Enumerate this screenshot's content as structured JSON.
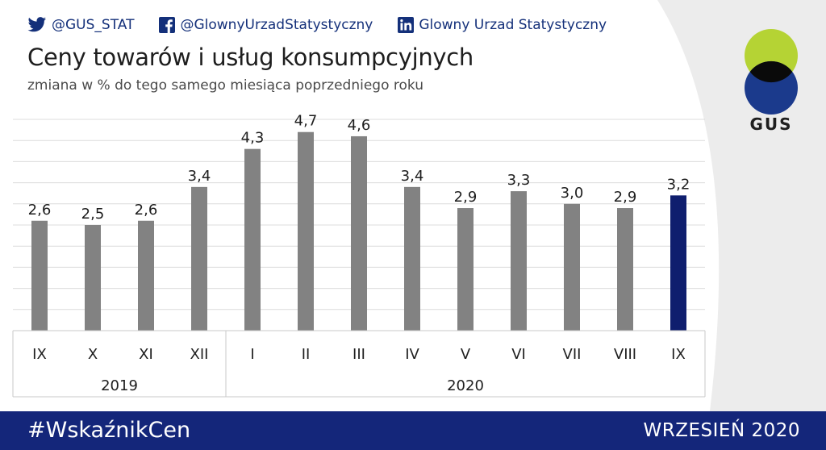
{
  "header": {
    "social": [
      {
        "icon": "twitter-icon",
        "text": "@GUS_STAT"
      },
      {
        "icon": "facebook-icon",
        "text": "@GlownyUrzadStatystyczny"
      },
      {
        "icon": "linkedin-icon",
        "text": "Glowny Urzad Statystyczny"
      }
    ],
    "title": "Ceny towarów i usług konsumpcyjnych",
    "subtitle": "zmiana w % do tego samego miesiąca poprzedniego roku",
    "logo_text": "GUS"
  },
  "colors": {
    "brand_blue": "#14267a",
    "bar_gray": "#828282",
    "bar_highlight": "#0f1e6e",
    "logo_green": "#b5d334",
    "logo_blue": "#1b3a8c"
  },
  "chart_data": {
    "type": "bar",
    "categories": [
      "IX",
      "X",
      "XI",
      "XII",
      "I",
      "II",
      "III",
      "IV",
      "V",
      "VI",
      "VII",
      "VIII",
      "IX"
    ],
    "values": [
      2.6,
      2.5,
      2.6,
      3.4,
      4.3,
      4.7,
      4.6,
      3.4,
      2.9,
      3.3,
      3.0,
      2.9,
      3.2
    ],
    "value_labels": [
      "2,6",
      "2,5",
      "2,6",
      "3,4",
      "4,3",
      "4,7",
      "4,6",
      "3,4",
      "2,9",
      "3,3",
      "3,0",
      "2,9",
      "3,2"
    ],
    "highlight_index": 12,
    "groups": [
      {
        "label": "2019",
        "start": 0,
        "end": 3
      },
      {
        "label": "2020",
        "start": 4,
        "end": 12
      }
    ],
    "ylim": [
      0,
      5
    ],
    "grid": true,
    "legend": "none"
  },
  "footer": {
    "hashtag": "#WskaźnikCen",
    "period": "WRZESIEŃ  2020"
  }
}
